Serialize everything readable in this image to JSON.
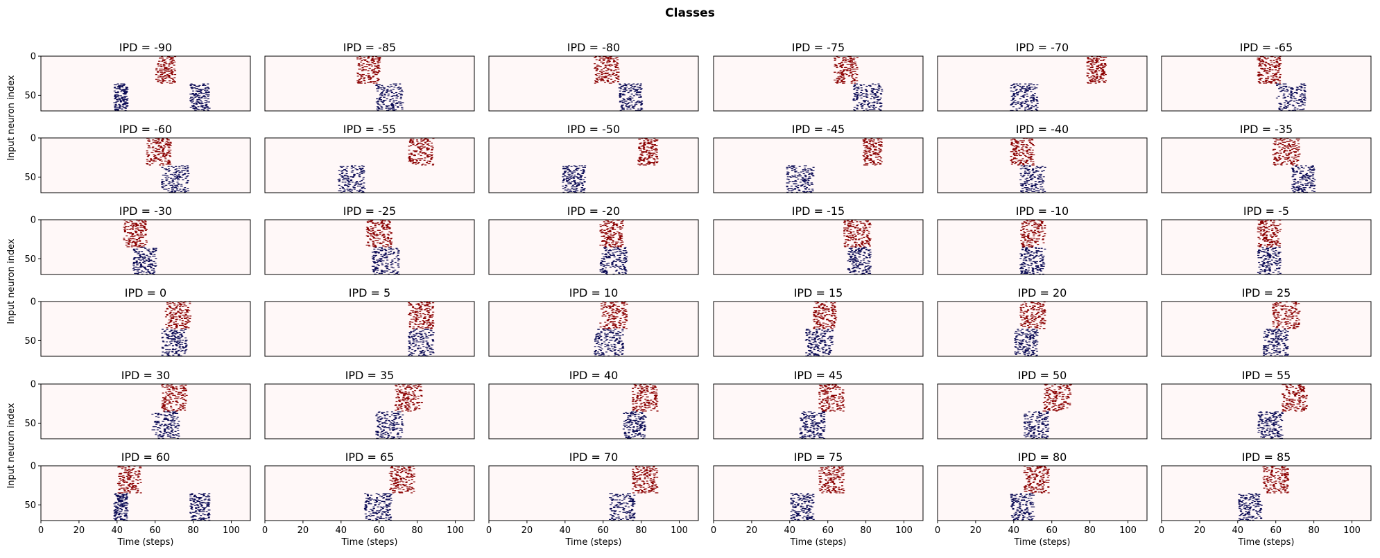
{
  "figure": {
    "suptitle": "Classes",
    "x_axis_label": "Time (steps)",
    "y_axis_label": "Input neuron index",
    "x_ticks": [
      "0",
      "20",
      "40",
      "60",
      "80",
      "100"
    ],
    "y_ticks": [
      "0",
      "50"
    ],
    "colors": {
      "left_ear": "#8b0000",
      "right_ear": "#0b0b55",
      "background": "#fff8f8",
      "frame": "#000000"
    }
  },
  "chart_data": {
    "type": "heatmap",
    "description_kind": "spike raster per IPD class",
    "rows": 6,
    "cols": 6,
    "x_range": [
      0,
      110
    ],
    "y_range": [
      0,
      70
    ],
    "y_inverted": true,
    "neurons_per_ear": 35,
    "panels": [
      {
        "title": "IPD = -90",
        "ipd": -90,
        "red": [
          60,
          70
        ],
        "blue": [
          [
            38,
            45
          ],
          [
            78,
            88
          ]
        ]
      },
      {
        "title": "IPD = -85",
        "ipd": -85,
        "red": [
          48,
          60
        ],
        "blue": [
          [
            58,
            72
          ]
        ]
      },
      {
        "title": "IPD = -80",
        "ipd": -80,
        "red": [
          55,
          68
        ],
        "blue": [
          [
            68,
            80
          ]
        ]
      },
      {
        "title": "IPD = -75",
        "ipd": -75,
        "red": [
          63,
          75
        ],
        "blue": [
          [
            73,
            88
          ]
        ]
      },
      {
        "title": "IPD = -70",
        "ipd": -70,
        "red": [
          78,
          88
        ],
        "blue": [
          [
            38,
            52
          ]
        ]
      },
      {
        "title": "IPD = -65",
        "ipd": -65,
        "red": [
          50,
          62
        ],
        "blue": [
          [
            60,
            75
          ]
        ]
      },
      {
        "title": "IPD = -60",
        "ipd": -60,
        "red": [
          55,
          68
        ],
        "blue": [
          [
            63,
            77
          ]
        ]
      },
      {
        "title": "IPD = -55",
        "ipd": -55,
        "red": [
          75,
          88
        ],
        "blue": [
          [
            38,
            52
          ]
        ]
      },
      {
        "title": "IPD = -50",
        "ipd": -50,
        "red": [
          78,
          88
        ],
        "blue": [
          [
            38,
            50
          ]
        ]
      },
      {
        "title": "IPD = -45",
        "ipd": -45,
        "red": [
          78,
          88
        ],
        "blue": [
          [
            38,
            52
          ]
        ]
      },
      {
        "title": "IPD = -40",
        "ipd": -40,
        "red": [
          38,
          50
        ],
        "blue": [
          [
            43,
            56
          ]
        ]
      },
      {
        "title": "IPD = -35",
        "ipd": -35,
        "red": [
          58,
          72
        ],
        "blue": [
          [
            68,
            80
          ]
        ]
      },
      {
        "title": "IPD = -30",
        "ipd": -30,
        "red": [
          43,
          55
        ],
        "blue": [
          [
            48,
            60
          ]
        ]
      },
      {
        "title": "IPD = -25",
        "ipd": -25,
        "red": [
          53,
          66
        ],
        "blue": [
          [
            56,
            70
          ]
        ]
      },
      {
        "title": "IPD = -20",
        "ipd": -20,
        "red": [
          58,
          70
        ],
        "blue": [
          [
            58,
            72
          ]
        ]
      },
      {
        "title": "IPD = -15",
        "ipd": -15,
        "red": [
          68,
          82
        ],
        "blue": [
          [
            70,
            82
          ]
        ]
      },
      {
        "title": "IPD = -10",
        "ipd": -10,
        "red": [
          43,
          56
        ],
        "blue": [
          [
            43,
            56
          ]
        ]
      },
      {
        "title": "IPD = -5",
        "ipd": -5,
        "red": [
          50,
          62
        ],
        "blue": [
          [
            50,
            62
          ]
        ]
      },
      {
        "title": "IPD = 0",
        "ipd": 0,
        "red": [
          65,
          78
        ],
        "blue": [
          [
            63,
            76
          ]
        ]
      },
      {
        "title": "IPD = 5",
        "ipd": 5,
        "red": [
          75,
          88
        ],
        "blue": [
          [
            75,
            88
          ]
        ]
      },
      {
        "title": "IPD = 10",
        "ipd": 10,
        "red": [
          58,
          72
        ],
        "blue": [
          [
            55,
            70
          ]
        ]
      },
      {
        "title": "IPD = 15",
        "ipd": 15,
        "red": [
          52,
          64
        ],
        "blue": [
          [
            48,
            62
          ]
        ]
      },
      {
        "title": "IPD = 20",
        "ipd": 20,
        "red": [
          43,
          56
        ],
        "blue": [
          [
            40,
            52
          ]
        ]
      },
      {
        "title": "IPD = 25",
        "ipd": 25,
        "red": [
          58,
          72
        ],
        "blue": [
          [
            53,
            66
          ]
        ]
      },
      {
        "title": "IPD = 30",
        "ipd": 30,
        "red": [
          63,
          76
        ],
        "blue": [
          [
            58,
            72
          ]
        ]
      },
      {
        "title": "IPD = 35",
        "ipd": 35,
        "red": [
          68,
          82
        ],
        "blue": [
          [
            58,
            72
          ]
        ]
      },
      {
        "title": "IPD = 40",
        "ipd": 40,
        "red": [
          75,
          88
        ],
        "blue": [
          [
            70,
            82
          ]
        ]
      },
      {
        "title": "IPD = 45",
        "ipd": 45,
        "red": [
          55,
          68
        ],
        "blue": [
          [
            45,
            58
          ]
        ]
      },
      {
        "title": "IPD = 50",
        "ipd": 50,
        "red": [
          55,
          70
        ],
        "blue": [
          [
            45,
            58
          ]
        ]
      },
      {
        "title": "IPD = 55",
        "ipd": 55,
        "red": [
          63,
          76
        ],
        "blue": [
          [
            50,
            63
          ]
        ]
      },
      {
        "title": "IPD = 60",
        "ipd": 60,
        "red": [
          40,
          52
        ],
        "blue": [
          [
            38,
            45
          ],
          [
            78,
            88
          ]
        ]
      },
      {
        "title": "IPD = 65",
        "ipd": 65,
        "red": [
          65,
          78
        ],
        "blue": [
          [
            52,
            66
          ]
        ]
      },
      {
        "title": "IPD = 70",
        "ipd": 70,
        "red": [
          75,
          88
        ],
        "blue": [
          [
            63,
            76
          ]
        ]
      },
      {
        "title": "IPD = 75",
        "ipd": 75,
        "red": [
          55,
          68
        ],
        "blue": [
          [
            40,
            52
          ]
        ]
      },
      {
        "title": "IPD = 80",
        "ipd": 80,
        "red": [
          45,
          58
        ],
        "blue": [
          [
            38,
            50
          ]
        ]
      },
      {
        "title": "IPD = 85",
        "ipd": 85,
        "red": [
          53,
          66
        ],
        "blue": [
          [
            40,
            52
          ]
        ]
      }
    ]
  }
}
